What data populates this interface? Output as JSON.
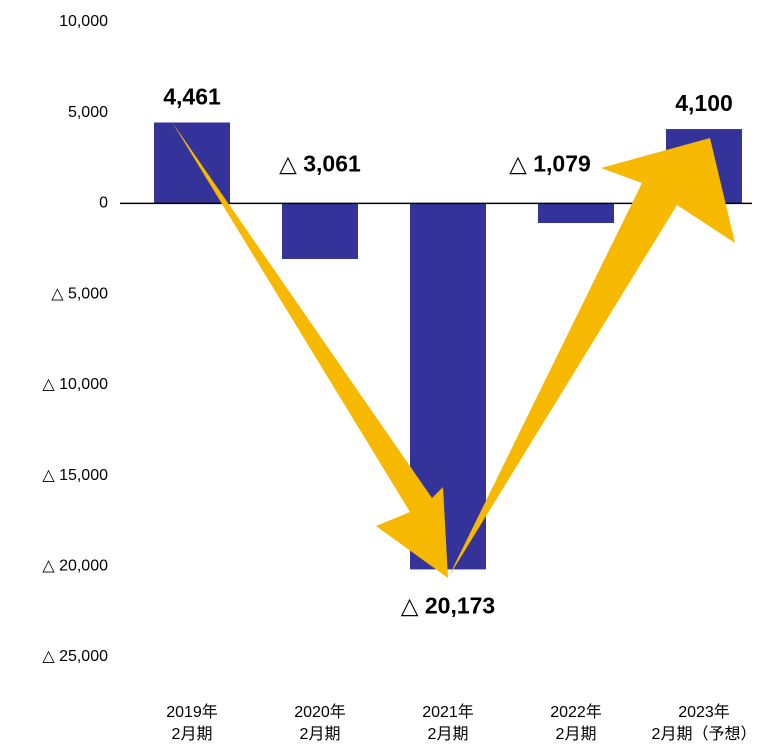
{
  "chart_data": {
    "type": "bar",
    "categories": [
      [
        "2019年",
        "2月期"
      ],
      [
        "2020年",
        "2月期"
      ],
      [
        "2021年",
        "2月期"
      ],
      [
        "2022年",
        "2月期"
      ],
      [
        "2023年",
        "2月期（予想）"
      ]
    ],
    "values": [
      4461,
      -3061,
      -20173,
      -1079,
      4100
    ],
    "value_labels": [
      "4,461",
      "△ 3,061",
      "△ 20,173",
      "△ 1,079",
      "4,100"
    ],
    "color": "#333399",
    "ylim": [
      -25000,
      10000
    ],
    "yticks": [
      {
        "value": 10000,
        "label": "10,000"
      },
      {
        "value": 5000,
        "label": "5,000"
      },
      0,
      {
        "value": -5000,
        "label": "△ 5,000"
      },
      {
        "value": -10000,
        "label": "△ 10,000"
      },
      {
        "value": -15000,
        "label": "△ 15,000"
      },
      {
        "value": -20000,
        "label": "△ 20,000"
      },
      {
        "value": -25000,
        "label": "△ 25,000"
      }
    ],
    "grid": false
  }
}
